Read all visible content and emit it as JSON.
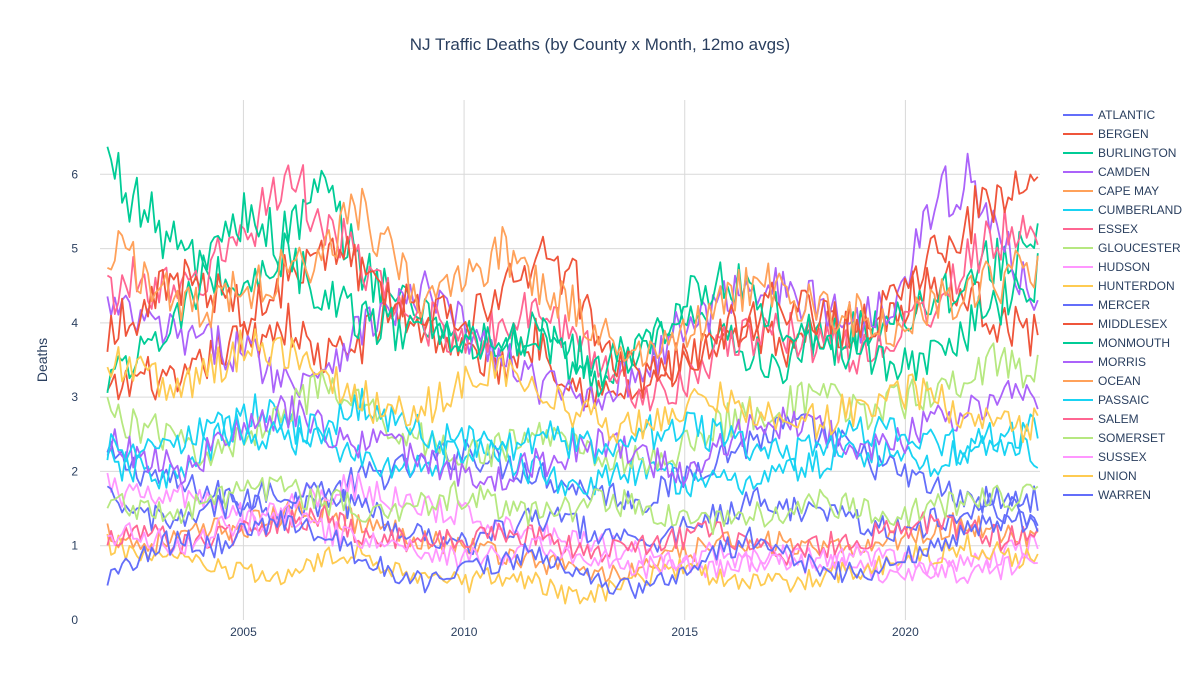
{
  "chart_data": {
    "type": "line",
    "title": "NJ Traffic Deaths (by County x Month, 12mo avgs)",
    "xlabel": "",
    "ylabel": "Deaths",
    "xlim": [
      2001.75,
      2023.05
    ],
    "ylim": [
      0,
      7
    ],
    "x_ticks": [
      2005,
      2010,
      2015,
      2020
    ],
    "y_ticks": [
      0,
      1,
      2,
      3,
      4,
      5,
      6
    ],
    "grid": true,
    "legend_position": "right",
    "x_start": 2001.917,
    "x_end": 2023.0,
    "series": [
      {
        "name": "ATLANTIC",
        "color": "#636efa",
        "values": [
          2.2,
          2.0,
          1.8,
          1.7,
          1.6,
          1.5,
          1.6,
          1.9,
          2.0,
          2.1,
          2.3,
          2.1,
          2.0,
          1.8,
          1.7,
          1.6,
          1.9,
          2.2,
          2.4,
          2.6,
          2.5,
          2.2,
          2.0,
          1.8,
          1.6,
          1.5,
          1.4
        ]
      },
      {
        "name": "BERGEN",
        "color": "#ef553b",
        "values": [
          3.0,
          3.3,
          3.1,
          3.6,
          3.8,
          4.0,
          3.5,
          3.7,
          4.2,
          3.9,
          3.6,
          3.4,
          3.8,
          3.2,
          3.0,
          3.1,
          3.5,
          3.6,
          3.8,
          3.7,
          3.9,
          4.0,
          4.2,
          4.6,
          4.4,
          4.0,
          3.8
        ]
      },
      {
        "name": "BURLINGTON",
        "color": "#00cc96",
        "values": [
          6.2,
          5.5,
          5.0,
          4.6,
          4.4,
          5.2,
          5.8,
          4.8,
          4.4,
          4.0,
          3.8,
          3.6,
          3.9,
          3.4,
          3.2,
          3.6,
          4.0,
          3.8,
          3.6,
          3.4,
          3.8,
          3.9,
          4.1,
          4.3,
          4.6,
          4.9,
          5.0
        ]
      },
      {
        "name": "CAMDEN",
        "color": "#ab63fa",
        "values": [
          4.2,
          4.0,
          3.8,
          3.7,
          3.6,
          3.2,
          3.4,
          3.9,
          4.2,
          4.4,
          3.9,
          3.5,
          3.2,
          3.0,
          3.1,
          3.4,
          3.9,
          4.2,
          4.6,
          4.4,
          4.2,
          4.0,
          4.4,
          5.5,
          6.0,
          5.0,
          4.4
        ]
      },
      {
        "name": "CAPE MAY",
        "color": "#ffa15a",
        "values": [
          1.2,
          1.0,
          1.1,
          1.2,
          1.3,
          1.4,
          1.5,
          1.3,
          1.2,
          1.1,
          1.0,
          0.9,
          0.8,
          0.7,
          0.6,
          0.7,
          0.9,
          1.0,
          1.1,
          1.0,
          0.9,
          1.0,
          1.1,
          1.2,
          1.3,
          1.2,
          1.1
        ]
      },
      {
        "name": "CUMBERLAND",
        "color": "#19d3f3",
        "values": [
          2.1,
          2.0,
          1.9,
          2.4,
          2.8,
          2.7,
          2.4,
          2.2,
          2.0,
          2.1,
          2.3,
          2.2,
          2.0,
          1.8,
          1.9,
          2.0,
          1.9,
          1.8,
          1.9,
          2.0,
          2.1,
          2.3,
          2.2,
          2.1,
          2.3,
          2.4,
          2.2
        ]
      },
      {
        "name": "ESSEX",
        "color": "#ff6692",
        "values": [
          4.4,
          4.6,
          4.3,
          4.8,
          5.3,
          6.0,
          5.4,
          4.8,
          4.2,
          4.0,
          3.8,
          3.9,
          4.2,
          3.8,
          3.4,
          3.0,
          3.2,
          3.6,
          3.8,
          3.9,
          3.7,
          3.6,
          3.8,
          4.2,
          4.8,
          5.2,
          5.0
        ]
      },
      {
        "name": "GLOUCESTER",
        "color": "#b6e880",
        "values": [
          2.8,
          2.6,
          2.4,
          2.2,
          2.5,
          2.9,
          3.1,
          2.9,
          2.6,
          2.4,
          2.2,
          2.3,
          2.5,
          2.4,
          2.2,
          2.1,
          2.3,
          2.6,
          2.8,
          2.9,
          3.0,
          2.8,
          2.9,
          3.1,
          3.3,
          3.5,
          3.3
        ]
      },
      {
        "name": "HUDSON",
        "color": "#ff97ff",
        "values": [
          1.8,
          1.6,
          1.7,
          1.5,
          1.4,
          1.6,
          1.7,
          1.8,
          1.6,
          1.5,
          1.4,
          1.3,
          1.2,
          1.1,
          1.0,
          0.9,
          0.8,
          0.7,
          0.8,
          0.9,
          0.8,
          0.7,
          0.6,
          0.7,
          0.8,
          0.9,
          1.0
        ]
      },
      {
        "name": "HUNTERDON",
        "color": "#fecb52",
        "values": [
          1.0,
          0.9,
          0.8,
          0.7,
          0.6,
          0.6,
          0.8,
          0.9,
          0.7,
          0.6,
          0.5,
          0.6,
          0.5,
          0.3,
          0.4,
          0.6,
          0.7,
          0.6,
          0.5,
          0.5,
          0.6,
          0.7,
          0.8,
          0.9,
          1.0,
          0.9,
          0.8
        ]
      },
      {
        "name": "MERCER",
        "color": "#636efa",
        "values": [
          1.6,
          1.4,
          1.3,
          1.5,
          1.6,
          1.8,
          1.7,
          1.5,
          1.3,
          1.1,
          1.0,
          1.2,
          1.4,
          1.3,
          1.1,
          1.0,
          1.2,
          1.4,
          1.6,
          1.5,
          1.4,
          1.3,
          1.2,
          1.3,
          1.5,
          1.7,
          1.6
        ]
      },
      {
        "name": "MIDDLESEX",
        "color": "#ef553b",
        "values": [
          3.9,
          4.2,
          4.6,
          4.4,
          4.1,
          4.6,
          5.1,
          4.8,
          4.4,
          4.2,
          3.9,
          4.4,
          4.9,
          4.6,
          3.6,
          3.2,
          3.5,
          3.8,
          4.1,
          4.3,
          4.0,
          3.9,
          4.3,
          4.8,
          5.4,
          5.8,
          5.9
        ]
      },
      {
        "name": "MONMOUTH",
        "color": "#00cc96",
        "values": [
          3.3,
          3.6,
          4.2,
          4.8,
          5.5,
          4.9,
          4.4,
          4.1,
          3.9,
          4.1,
          3.8,
          3.7,
          3.9,
          3.6,
          3.4,
          3.8,
          4.3,
          4.6,
          4.4,
          4.0,
          3.8,
          3.6,
          3.4,
          3.5,
          3.9,
          4.3,
          4.6
        ]
      },
      {
        "name": "MORRIS",
        "color": "#ab63fa",
        "values": [
          2.4,
          2.2,
          2.0,
          2.3,
          2.6,
          2.8,
          2.6,
          2.4,
          2.3,
          2.1,
          2.0,
          1.9,
          2.1,
          2.3,
          2.4,
          2.2,
          2.0,
          2.3,
          2.6,
          2.7,
          2.5,
          2.3,
          2.4,
          2.6,
          2.8,
          3.0,
          2.9
        ]
      },
      {
        "name": "OCEAN",
        "color": "#ffa15a",
        "values": [
          5.0,
          4.7,
          4.3,
          4.2,
          4.5,
          4.7,
          4.9,
          5.6,
          4.8,
          4.3,
          4.6,
          5.0,
          4.6,
          4.2,
          3.8,
          3.6,
          3.9,
          4.2,
          4.6,
          4.4,
          4.2,
          4.1,
          4.0,
          4.2,
          4.4,
          4.6,
          4.7
        ]
      },
      {
        "name": "PASSAIC",
        "color": "#19d3f3",
        "values": [
          2.3,
          2.2,
          2.4,
          2.6,
          2.5,
          2.4,
          2.6,
          2.9,
          2.7,
          2.5,
          2.4,
          2.3,
          2.5,
          2.4,
          2.3,
          2.5,
          2.6,
          2.5,
          2.3,
          2.2,
          2.4,
          2.5,
          2.6,
          2.4,
          2.3,
          2.5,
          2.6
        ]
      },
      {
        "name": "SALEM",
        "color": "#ff6692",
        "values": [
          1.1,
          1.2,
          1.0,
          1.1,
          1.2,
          1.3,
          1.4,
          1.2,
          1.1,
          1.0,
          1.1,
          1.2,
          1.1,
          1.0,
          0.9,
          1.0,
          1.1,
          1.2,
          1.0,
          0.9,
          1.0,
          1.1,
          1.2,
          1.3,
          1.2,
          1.1,
          1.2
        ]
      },
      {
        "name": "SOMERSET",
        "color": "#b6e880",
        "values": [
          1.6,
          1.5,
          1.4,
          1.6,
          1.7,
          1.8,
          1.6,
          1.5,
          1.4,
          1.6,
          1.7,
          1.5,
          1.4,
          1.5,
          1.6,
          1.5,
          1.4,
          1.3,
          1.4,
          1.5,
          1.6,
          1.5,
          1.4,
          1.5,
          1.6,
          1.7,
          1.6
        ]
      },
      {
        "name": "SUSSEX",
        "color": "#ff97ff",
        "values": [
          1.2,
          1.1,
          1.0,
          1.2,
          1.3,
          1.4,
          1.2,
          1.1,
          1.0,
          0.9,
          0.8,
          0.9,
          1.0,
          0.9,
          0.8,
          0.7,
          0.8,
          0.9,
          0.8,
          0.7,
          0.8,
          0.9,
          0.8,
          0.7,
          0.6,
          0.7,
          0.8
        ]
      },
      {
        "name": "UNION",
        "color": "#fecb52",
        "values": [
          3.5,
          3.3,
          3.1,
          3.4,
          3.8,
          3.6,
          3.3,
          3.0,
          2.8,
          2.9,
          3.2,
          3.4,
          3.1,
          2.8,
          2.6,
          2.7,
          2.9,
          3.0,
          2.8,
          2.6,
          2.7,
          2.9,
          3.1,
          3.0,
          2.8,
          2.7,
          2.6
        ]
      },
      {
        "name": "WARREN",
        "color": "#636efa",
        "values": [
          0.5,
          0.9,
          1.1,
          1.0,
          1.2,
          1.4,
          1.2,
          0.9,
          0.6,
          0.5,
          0.7,
          0.8,
          0.9,
          0.7,
          0.5,
          0.4,
          0.6,
          0.9,
          1.1,
          0.9,
          0.7,
          0.6,
          0.8,
          1.0,
          1.2,
          1.4,
          1.3
        ]
      }
    ]
  }
}
